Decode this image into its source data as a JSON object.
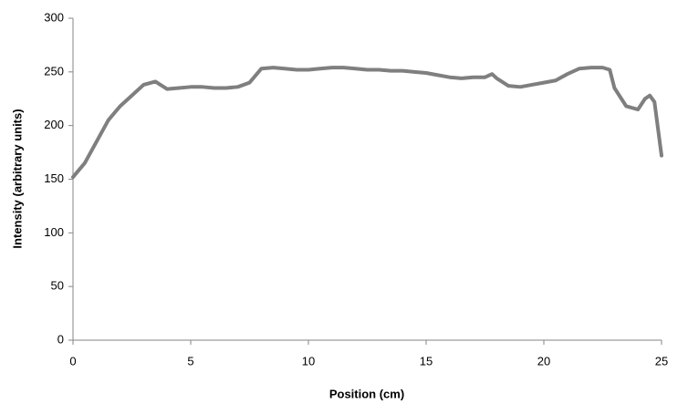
{
  "chart_data": {
    "type": "line",
    "x_label": "Position (cm)",
    "y_label": "Intensity (arbitrary units)",
    "color": "#7f7f7f",
    "x": [
      0,
      0.5,
      1,
      1.5,
      2,
      2.5,
      3,
      3.5,
      4,
      4.5,
      5,
      5.5,
      6,
      6.5,
      7,
      7.5,
      8,
      8.5,
      9,
      9.5,
      10,
      10.5,
      11,
      11.5,
      12,
      12.5,
      13,
      13.5,
      14,
      14.5,
      15,
      15.5,
      16,
      16.5,
      17,
      17.5,
      17.8,
      18,
      18.5,
      19,
      19.5,
      20,
      20.5,
      21,
      21.5,
      22,
      22.5,
      22.8,
      23,
      23.5,
      24,
      24.3,
      24.5,
      24.7,
      25
    ],
    "values": [
      152,
      165,
      185,
      205,
      218,
      228,
      238,
      241,
      234,
      235,
      236,
      236,
      235,
      235,
      236,
      240,
      253,
      254,
      253,
      252,
      252,
      253,
      254,
      254,
      253,
      252,
      252,
      251,
      251,
      250,
      249,
      247,
      245,
      244,
      245,
      245,
      248,
      244,
      237,
      236,
      238,
      240,
      242,
      248,
      253,
      254,
      254,
      252,
      235,
      218,
      215,
      225,
      228,
      222,
      172
    ],
    "xlim": [
      0,
      25
    ],
    "xticks": [
      0,
      5,
      10,
      15,
      20,
      25
    ],
    "ylim": [
      0,
      300
    ],
    "yticks": [
      0,
      50,
      100,
      150,
      200,
      250,
      300
    ],
    "grid": false
  }
}
